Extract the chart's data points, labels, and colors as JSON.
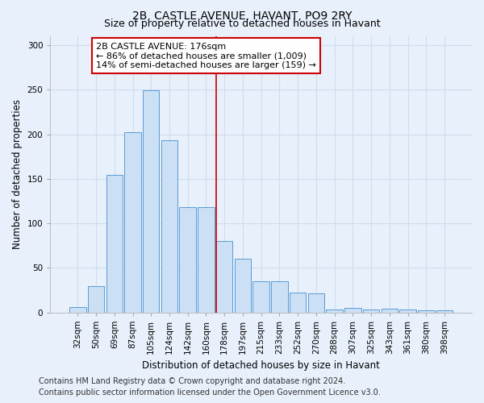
{
  "title": "2B, CASTLE AVENUE, HAVANT, PO9 2RY",
  "subtitle": "Size of property relative to detached houses in Havant",
  "xlabel": "Distribution of detached houses by size in Havant",
  "ylabel": "Number of detached properties",
  "bar_color": "#cce0f5",
  "bar_edge_color": "#5b9bd5",
  "categories": [
    "32sqm",
    "50sqm",
    "69sqm",
    "87sqm",
    "105sqm",
    "124sqm",
    "142sqm",
    "160sqm",
    "178sqm",
    "197sqm",
    "215sqm",
    "233sqm",
    "252sqm",
    "270sqm",
    "288sqm",
    "307sqm",
    "325sqm",
    "343sqm",
    "361sqm",
    "380sqm",
    "398sqm"
  ],
  "values": [
    6,
    29,
    154,
    202,
    249,
    193,
    118,
    118,
    80,
    60,
    35,
    35,
    22,
    21,
    3,
    5,
    3,
    4,
    3,
    2,
    2
  ],
  "ylim": [
    0,
    310
  ],
  "yticks": [
    0,
    50,
    100,
    150,
    200,
    250,
    300
  ],
  "vline_index": 8,
  "vline_color": "#cc0000",
  "annotation_title": "2B CASTLE AVENUE: 176sqm",
  "annotation_line1": "← 86% of detached houses are smaller (1,009)",
  "annotation_line2": "14% of semi-detached houses are larger (159) →",
  "annotation_box_color": "#ffffff",
  "annotation_box_edge": "#cc0000",
  "footer1": "Contains HM Land Registry data © Crown copyright and database right 2024.",
  "footer2": "Contains public sector information licensed under the Open Government Licence v3.0.",
  "background_color": "#e8f0fb",
  "grid_color": "#d0ddf0",
  "title_fontsize": 10,
  "subtitle_fontsize": 9,
  "axis_label_fontsize": 8.5,
  "tick_fontsize": 7.5,
  "annotation_fontsize": 8,
  "footer_fontsize": 7
}
